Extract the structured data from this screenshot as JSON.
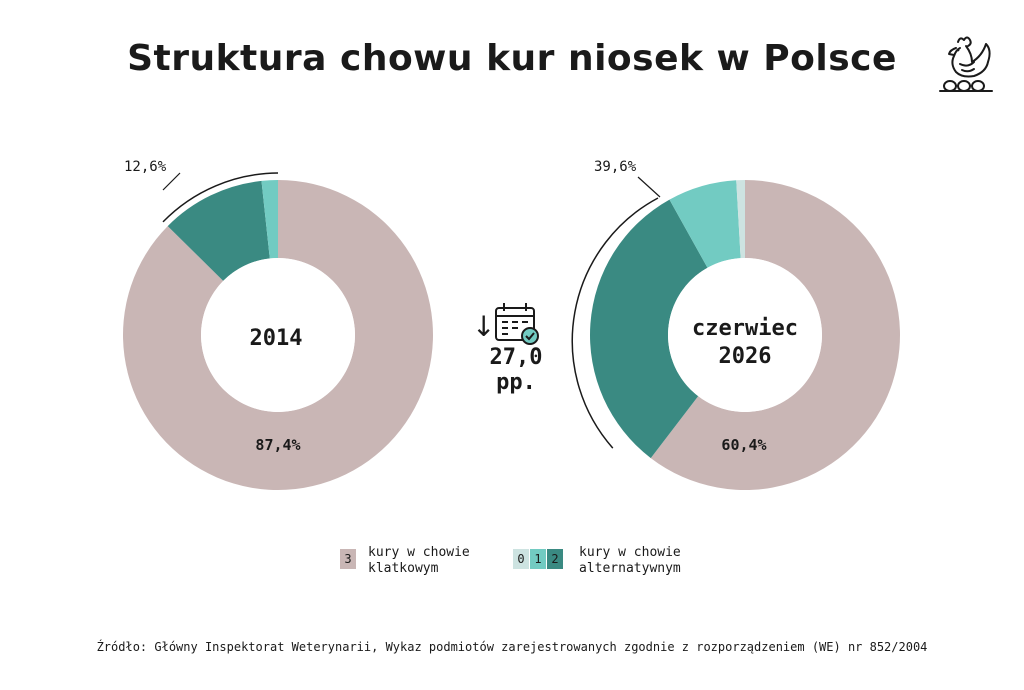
{
  "title": "Struktura chowu kur niosek w Polsce",
  "colors": {
    "cage": "#c9b6b5",
    "level0": "#cde3e1",
    "level1": "#72cbc2",
    "level2": "#3a8a82",
    "text": "#1a1a1a"
  },
  "chart_data": [
    {
      "type": "pie",
      "center_label": "2014",
      "slices": [
        {
          "name": "3",
          "value": 87.4,
          "color": "#c9b6b5"
        },
        {
          "name": "2",
          "value": 10.9,
          "color": "#3a8a82"
        },
        {
          "name": "1",
          "value": 1.7,
          "color": "#72cbc2"
        }
      ],
      "labels": {
        "cage_pct": "87,4%",
        "alt_pct": "12,6%"
      }
    },
    {
      "type": "pie",
      "center_label": [
        "czerwiec",
        "2026"
      ],
      "slices": [
        {
          "name": "3",
          "value": 60.4,
          "color": "#c9b6b5"
        },
        {
          "name": "2",
          "value": 31.5,
          "color": "#3a8a82"
        },
        {
          "name": "1",
          "value": 7.2,
          "color": "#72cbc2"
        },
        {
          "name": "0",
          "value": 0.9,
          "color": "#cde3e1"
        }
      ],
      "labels": {
        "cage_pct": "60,4%",
        "alt_pct": "39,6%"
      }
    }
  ],
  "change": {
    "arrow": "↓",
    "value": "27,0 pp.",
    "icon": "calendar-check-icon"
  },
  "legend": {
    "cage": {
      "codes": [
        "3"
      ],
      "line1": "kury w chowie",
      "line2": "klatkowym"
    },
    "alt": {
      "codes": [
        "0",
        "1",
        "2"
      ],
      "line1": "kury w  chowie",
      "line2": "alternatywnym"
    }
  },
  "source": "Źródło: Główny  Inspektorat Weterynarii, Wykaz podmiotów  zarejestrowanych zgodnie z rozporządzeniem (WE) nr  852/2004",
  "logo": {
    "icon": "hen-logo-icon"
  }
}
